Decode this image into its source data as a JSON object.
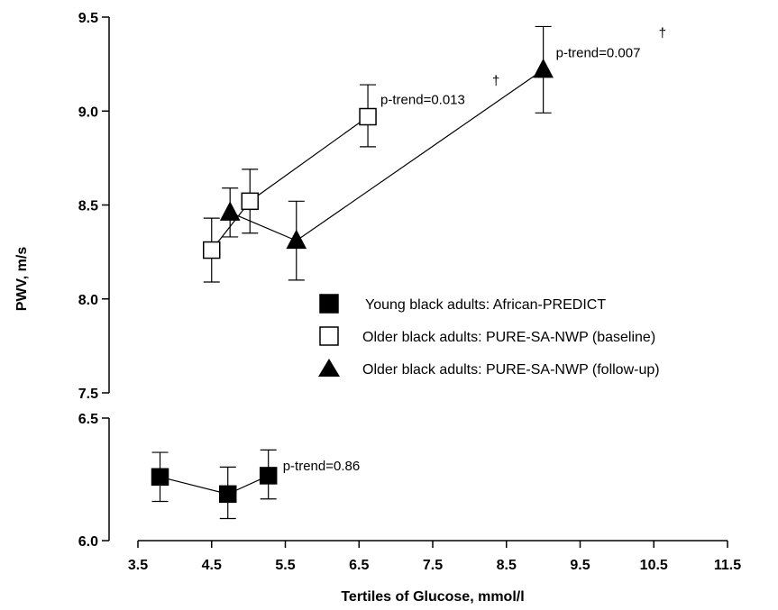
{
  "chart_data": {
    "type": "scatter",
    "xlabel": "Tertiles of Glucose, mmol/l",
    "ylabel": "PWV, m/s",
    "xlim": [
      3.5,
      11.5
    ],
    "xticks": [
      "3.5",
      "4.5",
      "5.5",
      "6.5",
      "7.5",
      "8.5",
      "9.5",
      "10.5",
      "11.5"
    ],
    "ylim_upper": [
      7.5,
      9.5
    ],
    "ylim_lower": [
      6.0,
      6.5
    ],
    "yticks_upper": [
      "7.5",
      "8.0",
      "8.5",
      "9.0",
      "9.5"
    ],
    "yticks_lower": [
      "6.0",
      "6.5"
    ],
    "grid": false,
    "legend_position": "right",
    "series": [
      {
        "name": "Young black adults:  African-PREDICT",
        "marker": "filled-square",
        "x": [
          3.8,
          4.72,
          5.27
        ],
        "y": [
          6.26,
          6.19,
          6.265
        ],
        "err_low": [
          6.16,
          6.09,
          6.17
        ],
        "err_high": [
          6.36,
          6.3,
          6.37
        ],
        "annotation": "p-trend=0.86",
        "annotation_mark": ""
      },
      {
        "name": "Older black adults: PURE-SA-NWP (baseline)",
        "marker": "open-square",
        "x": [
          4.5,
          5.02,
          6.62
        ],
        "y": [
          8.26,
          8.52,
          8.97
        ],
        "err_low": [
          8.09,
          8.35,
          8.81
        ],
        "err_high": [
          8.43,
          8.69,
          9.14
        ],
        "annotation": "p-trend=0.013",
        "annotation_mark": "†"
      },
      {
        "name": "Older black adults: PURE-SA-NWP (follow-up)",
        "marker": "filled-triangle",
        "x": [
          4.75,
          5.65,
          9.0
        ],
        "y": [
          8.46,
          8.31,
          9.22
        ],
        "err_low": [
          8.33,
          8.1,
          8.99
        ],
        "err_high": [
          8.59,
          8.52,
          9.45
        ],
        "annotation": "p-trend=0.007",
        "annotation_mark": "†"
      }
    ]
  }
}
